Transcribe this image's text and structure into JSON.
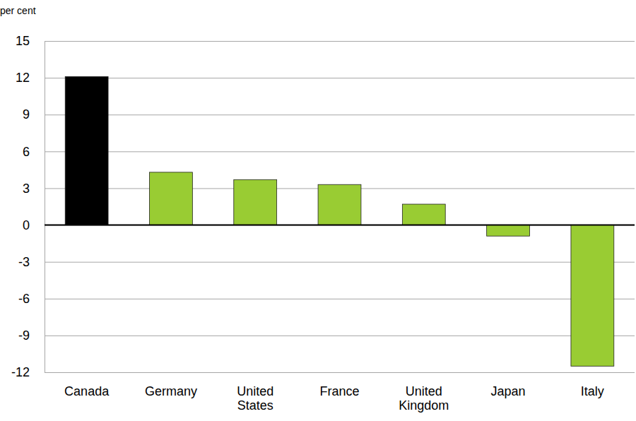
{
  "chart_data": {
    "type": "bar",
    "ylabel": "per cent",
    "categories": [
      "Canada",
      "Germany",
      "United States",
      "France",
      "United Kingdom",
      "Japan",
      "Italy"
    ],
    "values": [
      12.1,
      4.3,
      3.7,
      3.3,
      1.7,
      -0.9,
      -11.5
    ],
    "colors": [
      "#000000",
      "#99cc33",
      "#99cc33",
      "#99cc33",
      "#99cc33",
      "#99cc33",
      "#99cc33"
    ],
    "ylim": [
      -12,
      15
    ],
    "yticks": [
      -12,
      -9,
      -6,
      -3,
      0,
      3,
      6,
      9,
      12,
      15
    ],
    "grid": true
  }
}
